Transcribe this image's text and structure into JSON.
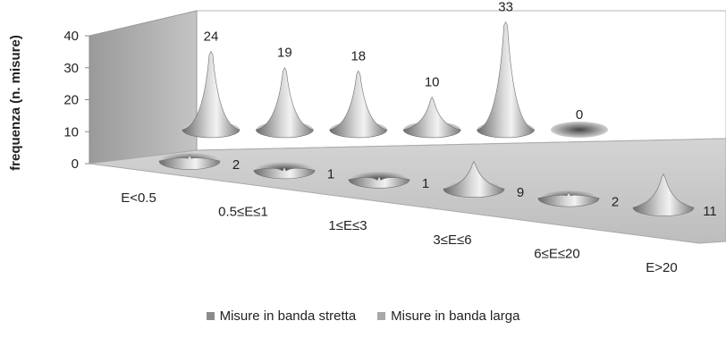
{
  "chart_data": {
    "type": "bar",
    "title": "",
    "xlabel": "",
    "ylabel": "frequenza (n. misure)",
    "ylim": [
      0,
      40
    ],
    "yticks": [
      "0",
      "10",
      "20",
      "30",
      "40"
    ],
    "grid": false,
    "legend_position": "bottom",
    "categories": [
      "E<0.5",
      "0.5≤E≤1",
      "1≤E≤3",
      "3≤E≤6",
      "6≤E≤20",
      "E>20"
    ],
    "series": [
      {
        "name": "Misure in banda stretta",
        "values": [
          2,
          1,
          1,
          9,
          2,
          11
        ],
        "color": "#8c8c8c"
      },
      {
        "name": "Misure in banda larga",
        "values": [
          24,
          19,
          18,
          10,
          33,
          0
        ],
        "color": "#a8a8a8"
      }
    ]
  }
}
